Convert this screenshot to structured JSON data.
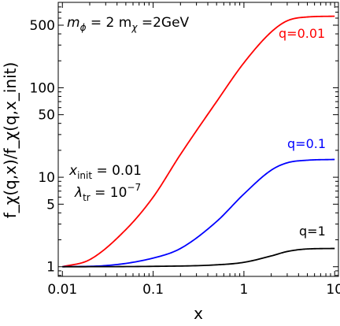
{
  "chart_data": {
    "type": "line",
    "xscale": "log",
    "yscale": "log",
    "xlim": [
      0.009,
      11
    ],
    "ylim": [
      0.78,
      900
    ],
    "xlabel": "x",
    "ylabel": "f_χ(q,x)/f_χ(q,x_init)",
    "xticks": [
      0.01,
      0.1,
      1,
      10
    ],
    "xtick_labels": [
      "0.01",
      "0.1",
      "1",
      "10"
    ],
    "yticks": [
      1,
      5,
      10,
      50,
      100,
      500
    ],
    "ytick_labels": [
      "1",
      "5",
      "10",
      "50",
      "100",
      "500"
    ],
    "grid": false,
    "series": [
      {
        "name": "q=0.01",
        "color": "#ff0000",
        "points": [
          [
            0.01,
            1
          ],
          [
            0.02,
            1.2
          ],
          [
            0.05,
            2.6
          ],
          [
            0.1,
            6
          ],
          [
            0.2,
            18
          ],
          [
            0.5,
            70
          ],
          [
            1,
            190
          ],
          [
            2,
            420
          ],
          [
            3,
            560
          ],
          [
            5,
            618
          ],
          [
            10,
            630
          ]
        ]
      },
      {
        "name": "q=0.1",
        "color": "#0000ff",
        "points": [
          [
            0.01,
            1
          ],
          [
            0.03,
            1.03
          ],
          [
            0.1,
            1.25
          ],
          [
            0.2,
            1.6
          ],
          [
            0.5,
            3.2
          ],
          [
            1,
            6.5
          ],
          [
            2,
            12
          ],
          [
            3,
            14.5
          ],
          [
            5,
            15.5
          ],
          [
            10,
            15.8
          ]
        ]
      },
      {
        "name": "q=1",
        "color": "#000000",
        "points": [
          [
            0.01,
            1
          ],
          [
            0.1,
            1.01
          ],
          [
            0.5,
            1.05
          ],
          [
            1,
            1.12
          ],
          [
            2,
            1.32
          ],
          [
            3,
            1.48
          ],
          [
            5,
            1.58
          ],
          [
            10,
            1.6
          ]
        ]
      }
    ],
    "annotations": {
      "mass_prefix": "m",
      "mass_sub_phi": "ϕ",
      "mass_mid": " = 2 m",
      "mass_sub_chi": "χ",
      "mass_value": " =2GeV",
      "xinit_prefix": "x",
      "xinit_sub": "init",
      "xinit_value": " = 0.01",
      "lambda_prefix": "λ",
      "lambda_sub": "tr",
      "lambda_value": " = 10",
      "lambda_exp": "−7"
    }
  }
}
